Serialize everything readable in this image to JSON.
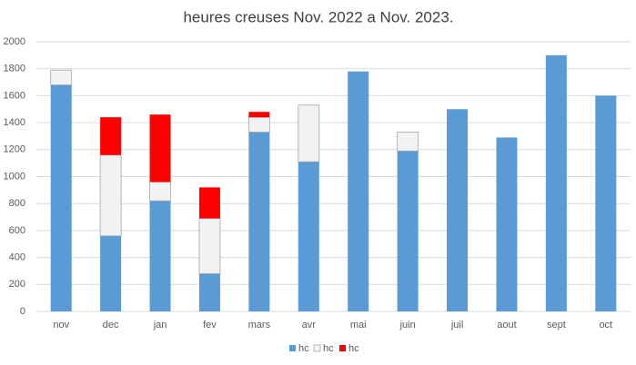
{
  "chart_data": {
    "type": "stacked-bar",
    "title": "heures creuses Nov. 2022 a Nov. 2023.",
    "categories": [
      "nov",
      "dec",
      "jan",
      "fev",
      "mars",
      "avr",
      "mai",
      "juin",
      "juil",
      "aout",
      "sept",
      "oct"
    ],
    "series": [
      {
        "name": "hc",
        "color": "#5b9bd5",
        "values": [
          1680,
          560,
          820,
          280,
          1330,
          1110,
          1780,
          1190,
          1500,
          1290,
          1900,
          1600
        ]
      },
      {
        "name": "hc",
        "color": "#f2f2f2",
        "values": [
          110,
          600,
          140,
          410,
          110,
          420,
          0,
          140,
          0,
          0,
          0,
          0
        ]
      },
      {
        "name": "hc",
        "color": "#ff0000",
        "values": [
          0,
          280,
          500,
          230,
          40,
          0,
          0,
          0,
          0,
          0,
          0,
          0
        ]
      }
    ],
    "ylim": [
      0,
      2000
    ],
    "yticks": [
      0,
      200,
      400,
      600,
      800,
      1000,
      1200,
      1400,
      1600,
      1800,
      2000
    ],
    "grid": true,
    "legend": "bottom"
  }
}
